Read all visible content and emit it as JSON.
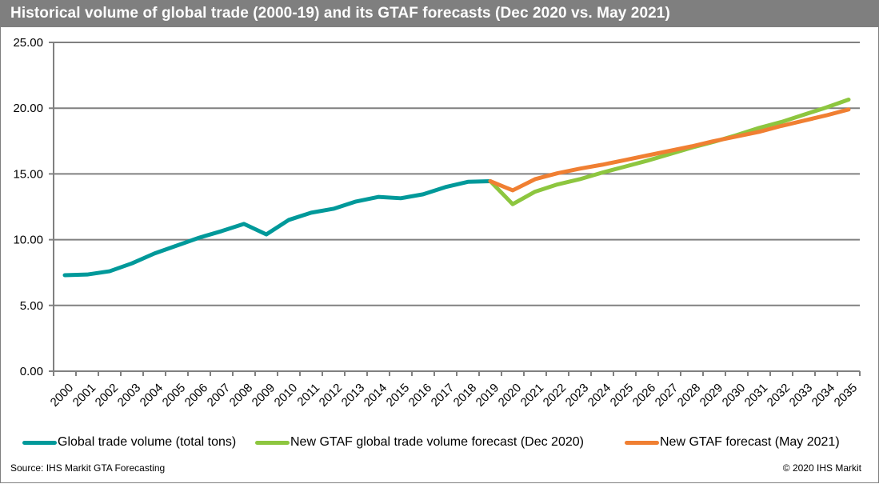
{
  "title": "Historical  volume of global trade (2000-19) and its GTAF forecasts  (Dec 2020 vs. May 2021)",
  "legend": [
    {
      "label": "Global trade volume (total tons)",
      "color": "#00999a"
    },
    {
      "label": "New GTAF global trade volume forecast (Dec 2020)",
      "color": "#8dc63f"
    },
    {
      "label": "New GTAF forecast (May 2021)",
      "color": "#f07f32"
    }
  ],
  "footer": {
    "source": "Source: IHS Markit GTA Forecasting",
    "copyright": "© 2020 IHS Markit"
  },
  "chart_data": {
    "type": "line",
    "title": "Historical  volume of global trade (2000-19) and its GTAF forecasts  (Dec 2020 vs. May 2021)",
    "xlabel": "",
    "ylabel": "",
    "ylim": [
      0,
      25
    ],
    "yticks": [
      "0.00",
      "5.00",
      "10.00",
      "15.00",
      "20.00",
      "25.00"
    ],
    "ytick_values": [
      0,
      5,
      10,
      15,
      20,
      25
    ],
    "grid": true,
    "legend_position": "bottom",
    "categories": [
      "2000",
      "2001",
      "2002",
      "2003",
      "2004",
      "2005",
      "2006",
      "2007",
      "2008",
      "2009",
      "2010",
      "2011",
      "2012",
      "2013",
      "2014",
      "2015",
      "2016",
      "2017",
      "2018",
      "2019",
      "2020",
      "2021",
      "2022",
      "2023",
      "2024",
      "2025",
      "2026",
      "2027",
      "2028",
      "2029",
      "2030",
      "2031",
      "2032",
      "2033",
      "2034",
      "2035"
    ],
    "series": [
      {
        "name": "Global trade volume (total tons)",
        "color": "#00999a",
        "values": [
          7.3,
          7.35,
          7.6,
          8.2,
          8.95,
          9.55,
          10.15,
          10.65,
          11.2,
          10.4,
          11.5,
          12.05,
          12.35,
          12.9,
          13.25,
          13.15,
          13.45,
          14.0,
          14.4,
          14.45,
          null,
          null,
          null,
          null,
          null,
          null,
          null,
          null,
          null,
          null,
          null,
          null,
          null,
          null,
          null,
          null
        ]
      },
      {
        "name": "New GTAF global trade volume forecast (Dec 2020)",
        "color": "#8dc63f",
        "values": [
          null,
          null,
          null,
          null,
          null,
          null,
          null,
          null,
          null,
          null,
          null,
          null,
          null,
          null,
          null,
          null,
          null,
          null,
          null,
          14.45,
          12.7,
          13.65,
          14.2,
          14.6,
          15.1,
          15.55,
          16.0,
          16.5,
          17.0,
          17.45,
          17.95,
          18.5,
          18.95,
          19.5,
          20.05,
          20.65
        ]
      },
      {
        "name": "New GTAF forecast (May 2021)",
        "color": "#f07f32",
        "values": [
          null,
          null,
          null,
          null,
          null,
          null,
          null,
          null,
          null,
          null,
          null,
          null,
          null,
          null,
          null,
          null,
          null,
          null,
          null,
          14.45,
          13.75,
          14.6,
          15.05,
          15.4,
          15.7,
          16.05,
          16.4,
          16.75,
          17.1,
          17.5,
          17.85,
          18.2,
          18.65,
          19.05,
          19.45,
          19.9
        ]
      }
    ]
  }
}
